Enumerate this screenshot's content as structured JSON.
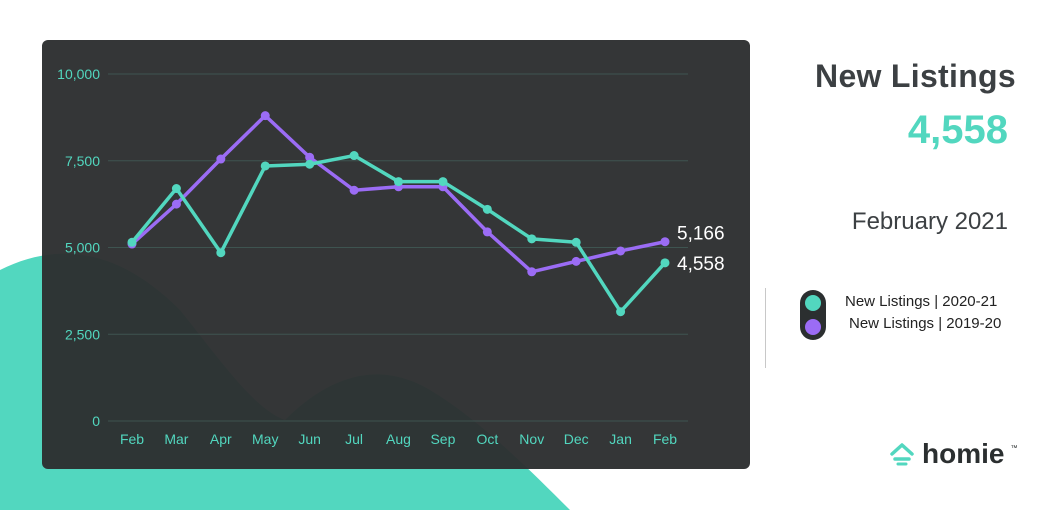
{
  "header": {
    "title": "New Listings",
    "value": "4,558",
    "period": "February 2021"
  },
  "legend": {
    "items": [
      {
        "label": "New Listings | 2020-21",
        "color": "#52d7bf"
      },
      {
        "label": "New Listings | 2019-20",
        "color": "#9b6cf5"
      }
    ]
  },
  "brand": {
    "name": "homie",
    "trademark": "™",
    "accent": "#52d7bf"
  },
  "colors": {
    "panel": "#2d3031",
    "grid": "#3e5450",
    "axis_text": "#52d7bf",
    "teal": "#52d7bf",
    "purple": "#9b6cf5"
  },
  "chart_data": {
    "type": "line",
    "categories": [
      "Feb",
      "Mar",
      "Apr",
      "May",
      "Jun",
      "Jul",
      "Aug",
      "Sep",
      "Oct",
      "Nov",
      "Dec",
      "Jan",
      "Feb"
    ],
    "series": [
      {
        "name": "New Listings | 2020-21",
        "color": "#52d7bf",
        "values": [
          5150,
          6700,
          4850,
          7350,
          7400,
          7650,
          6900,
          6900,
          6100,
          5250,
          5150,
          3150,
          4558
        ]
      },
      {
        "name": "New Listings | 2019-20",
        "color": "#9b6cf5",
        "values": [
          5100,
          6250,
          7550,
          8800,
          7600,
          6650,
          6750,
          6750,
          5450,
          4300,
          4600,
          4900,
          5166
        ]
      }
    ],
    "end_labels": [
      "4,558",
      "5,166"
    ],
    "yticks": [
      0,
      2500,
      5000,
      7500,
      10000
    ],
    "ytick_labels": [
      "0",
      "2,500",
      "5,000",
      "7,500",
      "10,000"
    ],
    "ylim": [
      0,
      10000
    ],
    "grid": true,
    "title": "",
    "xlabel": "",
    "ylabel": ""
  }
}
